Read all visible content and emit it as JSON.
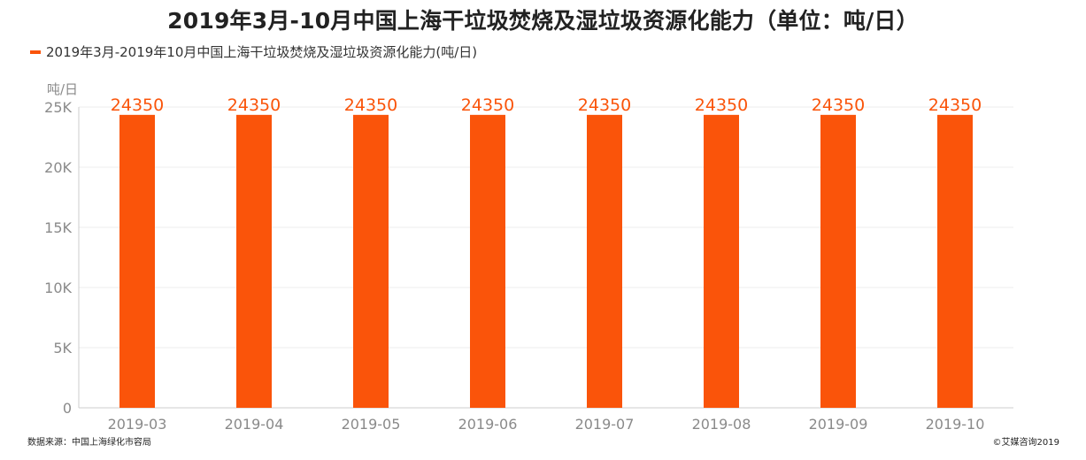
{
  "title": "2019年3月-10月中国上海干垃圾焚烧及湿垃圾资源化能力（单位：吨/日）",
  "legend": {
    "label": "2019年3月-2019年10月中国上海干垃圾焚烧及湿垃圾资源化能力(吨/日)"
  },
  "colors": {
    "bar": "#fa540a",
    "axis": "#cccccc",
    "grid": "#eeeeee",
    "tick_text": "#8a8a8a"
  },
  "footer": {
    "source": "数据来源：中国上海绿化市容局",
    "copyright": "©艾媒咨询2019"
  },
  "chart_data": {
    "type": "bar",
    "title": "2019年3月-10月中国上海干垃圾焚烧及湿垃圾资源化能力（单位：吨/日）",
    "ylabel": "吨/日",
    "xlabel": "",
    "categories": [
      "2019-03",
      "2019-04",
      "2019-05",
      "2019-06",
      "2019-07",
      "2019-08",
      "2019-09",
      "2019-10"
    ],
    "series": [
      {
        "name": "2019年3月-2019年10月中国上海干垃圾焚烧及湿垃圾资源化能力(吨/日)",
        "values": [
          24350,
          24350,
          24350,
          24350,
          24350,
          24350,
          24350,
          24350
        ]
      }
    ],
    "ylim": [
      0,
      25000
    ],
    "yticks": [
      0,
      5000,
      10000,
      15000,
      20000,
      25000
    ],
    "ytick_labels": [
      "0",
      "5K",
      "10K",
      "15K",
      "20K",
      "25K"
    ],
    "grid": true,
    "legend_position": "top-left",
    "data_labels": true
  }
}
